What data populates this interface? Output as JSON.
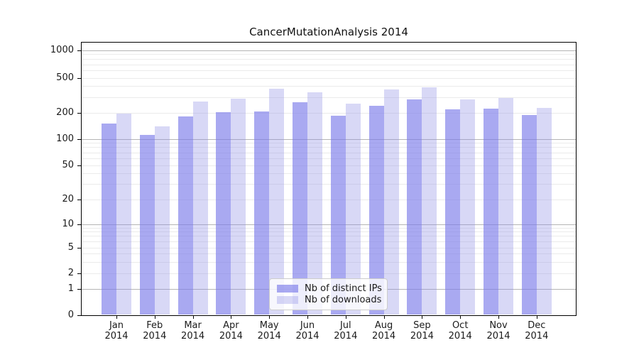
{
  "chart_data": {
    "type": "bar",
    "title": "CancerMutationAnalysis 2014",
    "year": "2014",
    "categories": [
      "Jan",
      "Feb",
      "Mar",
      "Apr",
      "May",
      "Jun",
      "Jul",
      "Aug",
      "Sep",
      "Oct",
      "Nov",
      "Dec"
    ],
    "series": [
      {
        "name": "Nb of distinct IPs",
        "color": "rgba(124,124,233,0.66)",
        "values": [
          150,
          112,
          183,
          203,
          208,
          264,
          185,
          242,
          285,
          219,
          226,
          188
        ]
      },
      {
        "name": "Nb of downloads",
        "color": "rgba(144,144,229,0.35)",
        "values": [
          197,
          140,
          272,
          292,
          378,
          345,
          255,
          370,
          392,
          285,
          297,
          228
        ]
      }
    ],
    "yscale": "symlog",
    "ylim": [
      0,
      1100
    ],
    "ytick_values": [
      0,
      1,
      2,
      5,
      10,
      20,
      50,
      100,
      200,
      500,
      1000
    ],
    "ytick_labels": [
      "0",
      "1",
      "2",
      "5",
      "10",
      "20",
      "50",
      "100",
      "200",
      "500",
      "1000"
    ],
    "grid": "horizontal major+minor",
    "legend_position": "lower center inside plot"
  },
  "colors": {
    "bar_ips": "rgba(124,124,233,0.66)",
    "bar_downloads": "rgba(144,144,229,0.35)",
    "grid_minor": "#ebebeb",
    "grid_major": "#b4b4b4",
    "spine": "#000000",
    "text": "#1a1a1a",
    "legend_bg": "rgba(255,255,255,0.8)",
    "legend_border": "#cccccc"
  }
}
